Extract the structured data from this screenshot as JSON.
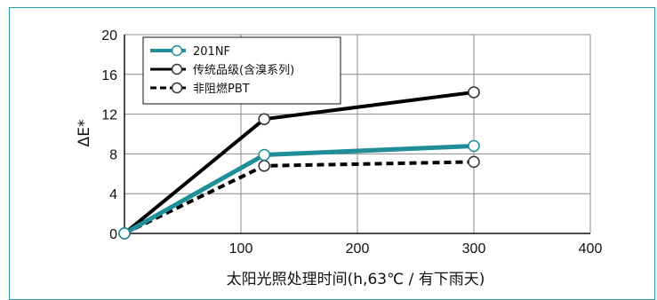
{
  "chart_data": {
    "type": "line",
    "xlabel": "太阳光照处理时间(h,63℃ / 有下雨天)",
    "ylabel": "ΔE*",
    "xlim": [
      0,
      400
    ],
    "ylim": [
      0,
      20
    ],
    "x_ticks": [
      "100",
      "200",
      "300",
      "400"
    ],
    "y_ticks": [
      "0",
      "4",
      "8",
      "12",
      "16",
      "20"
    ],
    "grid": true,
    "legend_position": "top-left",
    "series": [
      {
        "name": "201NF",
        "color": "#1f8e98",
        "style": "solid",
        "width": 5,
        "points": [
          [
            0,
            0
          ],
          [
            120,
            7.9
          ],
          [
            300,
            8.8
          ]
        ]
      },
      {
        "name": "传统品级(含溴系列)",
        "color": "#000000",
        "style": "solid",
        "width": 4,
        "points": [
          [
            0,
            0
          ],
          [
            120,
            11.5
          ],
          [
            300,
            14.2
          ]
        ]
      },
      {
        "name": "非阻燃PBT",
        "color": "#000000",
        "style": "dashed",
        "width": 4,
        "points": [
          [
            0,
            0
          ],
          [
            120,
            6.8
          ],
          [
            300,
            7.2
          ]
        ]
      }
    ]
  }
}
